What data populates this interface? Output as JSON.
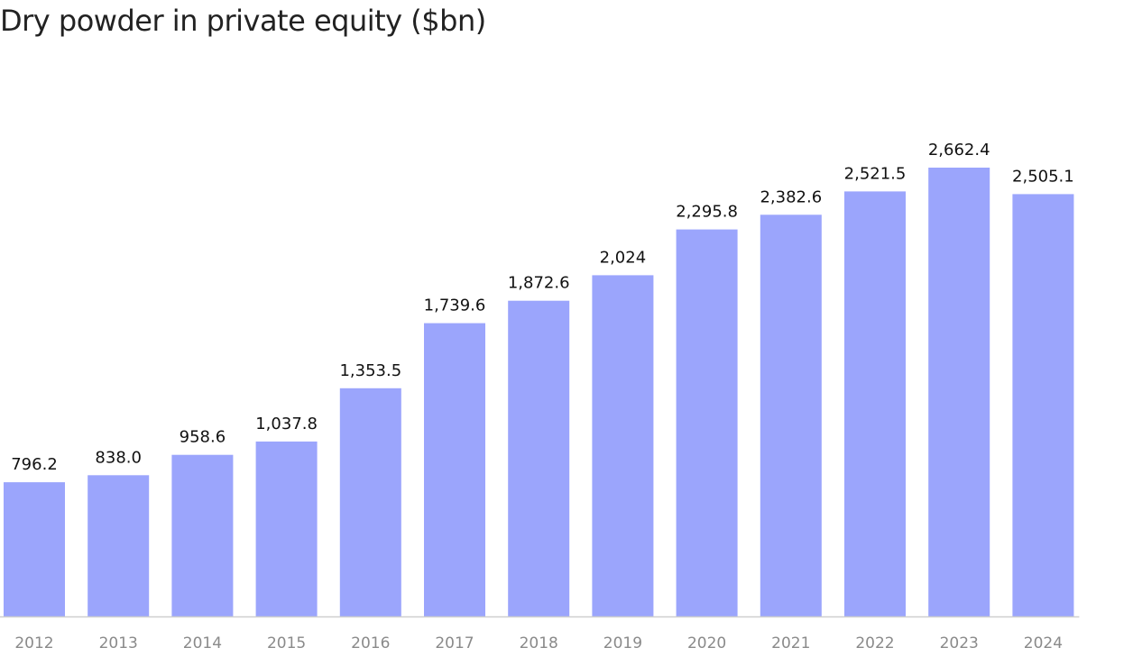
{
  "chart_data": {
    "type": "bar",
    "title": "Dry powder in private equity ($bn)",
    "xlabel": "",
    "ylabel": "",
    "categories": [
      "2012",
      "2013",
      "2014",
      "2015",
      "2016",
      "2017",
      "2018",
      "2019",
      "2020",
      "2021",
      "2022",
      "2023",
      "2024"
    ],
    "values": [
      796.2,
      838.0,
      958.6,
      1037.8,
      1353.5,
      1739.6,
      1872.6,
      2024,
      2295.8,
      2382.6,
      2521.5,
      2662.4,
      2505.1
    ],
    "value_labels": [
      "796.2",
      "838.0",
      "958.6",
      "1,037.8",
      "1,353.5",
      "1,739.6",
      "1,872.6",
      "2,024",
      "2,295.8",
      "2,382.6",
      "2,521.5",
      "2,662.4",
      "2,505.1"
    ],
    "ylim": [
      0,
      2662.4
    ],
    "grid": false,
    "legend": "none",
    "bar_color": "#9ba5fc",
    "baseline_color": "#cfcfcf"
  }
}
